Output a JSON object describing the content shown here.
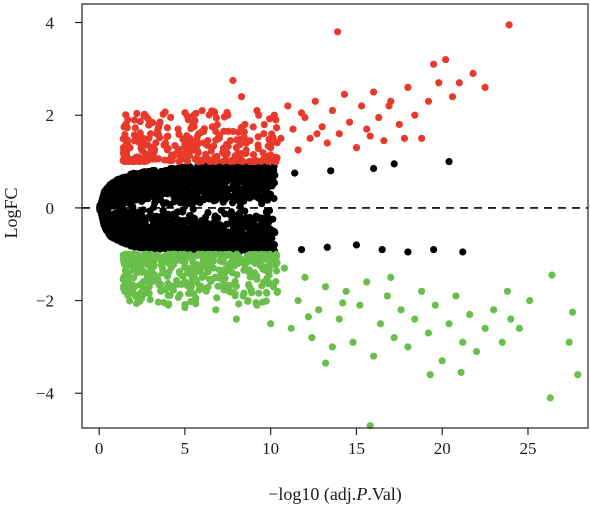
{
  "chart_data": {
    "type": "scatter",
    "title": "",
    "xlabel_prefix": "−log10 (adj.",
    "xlabel_italic": "P",
    "xlabel_suffix": ".Val)",
    "ylabel": "LogFC",
    "xlim": [
      -1.0,
      28.5
    ],
    "ylim": [
      -4.75,
      4.4
    ],
    "x_ticks": [
      0,
      5,
      10,
      15,
      20,
      25
    ],
    "x_tick_labels": [
      "0",
      "5",
      "10",
      "15",
      "20",
      "25"
    ],
    "y_ticks": [
      -4,
      -2,
      0,
      2,
      4
    ],
    "y_tick_labels": [
      "−4",
      "−2",
      "0",
      "2",
      "4"
    ],
    "reference_line": {
      "y": 0,
      "style": "dashed"
    },
    "legend": "none",
    "grid": false,
    "colors": {
      "up": "#e8392b",
      "down": "#6abf4b",
      "not_significant": "#000000"
    },
    "series": [
      {
        "color_key": "up",
        "points": [
          [
            1.5,
            1.15
          ],
          [
            1.8,
            1.3
          ],
          [
            2.2,
            1.1
          ],
          [
            2.5,
            1.45
          ],
          [
            3.0,
            1.6
          ],
          [
            3.2,
            1.2
          ],
          [
            3.5,
            1.8
          ],
          [
            3.8,
            1.35
          ],
          [
            4.0,
            1.55
          ],
          [
            4.3,
            1.1
          ],
          [
            4.6,
            1.7
          ],
          [
            5.0,
            1.4
          ],
          [
            5.2,
            1.9
          ],
          [
            5.5,
            1.25
          ],
          [
            5.8,
            1.6
          ],
          [
            6.0,
            2.1
          ],
          [
            6.3,
            1.35
          ],
          [
            6.6,
            1.75
          ],
          [
            7.0,
            1.5
          ],
          [
            7.2,
            1.2
          ],
          [
            7.5,
            2.0
          ],
          [
            7.8,
            1.65
          ],
          [
            8.0,
            1.3
          ],
          [
            8.3,
            2.4
          ],
          [
            8.5,
            1.8
          ],
          [
            8.8,
            1.45
          ],
          [
            9.0,
            1.15
          ],
          [
            9.3,
            2.0
          ],
          [
            9.6,
            1.6
          ],
          [
            10.0,
            1.3
          ],
          [
            10.3,
            1.9
          ],
          [
            10.6,
            1.5
          ],
          [
            11.0,
            2.2
          ],
          [
            11.3,
            1.7
          ],
          [
            11.6,
            1.25
          ],
          [
            12.0,
            1.95
          ],
          [
            12.3,
            1.5
          ],
          [
            12.6,
            2.3
          ],
          [
            13.0,
            1.75
          ],
          [
            13.3,
            1.4
          ],
          [
            13.6,
            2.1
          ],
          [
            14.0,
            1.6
          ],
          [
            14.3,
            2.45
          ],
          [
            14.6,
            1.85
          ],
          [
            15.0,
            1.3
          ],
          [
            15.3,
            2.2
          ],
          [
            15.6,
            1.7
          ],
          [
            16.0,
            2.5
          ],
          [
            16.3,
            1.95
          ],
          [
            16.6,
            1.45
          ],
          [
            17.0,
            2.3
          ],
          [
            17.5,
            1.8
          ],
          [
            18.0,
            2.6
          ],
          [
            18.4,
            2.0
          ],
          [
            18.8,
            1.5
          ],
          [
            19.2,
            2.3
          ],
          [
            19.5,
            3.1
          ],
          [
            19.8,
            2.7
          ],
          [
            20.2,
            3.2
          ],
          [
            20.6,
            2.4
          ],
          [
            21.0,
            2.7
          ],
          [
            21.8,
            2.9
          ],
          [
            22.5,
            2.6
          ],
          [
            13.9,
            3.8
          ],
          [
            23.9,
            3.95
          ],
          [
            7.8,
            2.75
          ],
          [
            9.2,
            2.1
          ],
          [
            11.8,
            2.05
          ],
          [
            16.9,
            2.2
          ],
          [
            12.7,
            1.6
          ],
          [
            3.3,
            1.4
          ],
          [
            6.8,
            1.65
          ],
          [
            15.8,
            1.55
          ],
          [
            17.8,
            1.5
          ]
        ]
      },
      {
        "color_key": "down",
        "points": [
          [
            1.8,
            -1.05
          ],
          [
            2.0,
            -1.3
          ],
          [
            2.4,
            -1.15
          ],
          [
            2.8,
            -1.5
          ],
          [
            3.2,
            -1.25
          ],
          [
            3.6,
            -1.8
          ],
          [
            4.0,
            -1.4
          ],
          [
            4.4,
            -1.1
          ],
          [
            4.8,
            -1.65
          ],
          [
            5.2,
            -1.3
          ],
          [
            5.6,
            -2.0
          ],
          [
            6.0,
            -1.5
          ],
          [
            6.4,
            -1.2
          ],
          [
            6.8,
            -2.2
          ],
          [
            7.2,
            -1.7
          ],
          [
            7.6,
            -1.35
          ],
          [
            8.0,
            -2.4
          ],
          [
            8.4,
            -1.9
          ],
          [
            8.8,
            -1.4
          ],
          [
            9.2,
            -2.1
          ],
          [
            9.6,
            -1.6
          ],
          [
            10.0,
            -2.5
          ],
          [
            10.4,
            -1.8
          ],
          [
            10.8,
            -1.3
          ],
          [
            11.2,
            -2.6
          ],
          [
            11.6,
            -2.0
          ],
          [
            12.0,
            -1.5
          ],
          [
            12.4,
            -2.8
          ],
          [
            12.8,
            -2.2
          ],
          [
            13.2,
            -1.7
          ],
          [
            13.6,
            -3.0
          ],
          [
            14.0,
            -2.4
          ],
          [
            14.4,
            -1.8
          ],
          [
            14.8,
            -2.9
          ],
          [
            15.2,
            -2.1
          ],
          [
            15.6,
            -1.6
          ],
          [
            16.0,
            -3.2
          ],
          [
            16.4,
            -2.5
          ],
          [
            16.8,
            -1.9
          ],
          [
            17.2,
            -2.8
          ],
          [
            17.6,
            -2.2
          ],
          [
            18.0,
            -3.0
          ],
          [
            18.4,
            -2.4
          ],
          [
            18.8,
            -1.8
          ],
          [
            19.2,
            -2.7
          ],
          [
            19.6,
            -2.1
          ],
          [
            20.0,
            -3.3
          ],
          [
            20.4,
            -2.5
          ],
          [
            20.8,
            -1.9
          ],
          [
            21.2,
            -2.9
          ],
          [
            21.6,
            -2.3
          ],
          [
            22.0,
            -3.1
          ],
          [
            22.5,
            -2.6
          ],
          [
            23.0,
            -2.2
          ],
          [
            23.5,
            -2.9
          ],
          [
            24.0,
            -2.4
          ],
          [
            24.5,
            -2.6
          ],
          [
            26.4,
            -1.45
          ],
          [
            27.4,
            -2.9
          ],
          [
            27.6,
            -2.25
          ],
          [
            27.9,
            -3.6
          ],
          [
            26.3,
            -4.1
          ],
          [
            21.1,
            -3.55
          ],
          [
            15.8,
            -4.7
          ],
          [
            13.2,
            -3.35
          ],
          [
            19.3,
            -3.6
          ],
          [
            23.8,
            -1.8
          ],
          [
            25.1,
            -2.0
          ],
          [
            3.0,
            -1.35
          ],
          [
            6.2,
            -1.75
          ],
          [
            9.4,
            -1.25
          ],
          [
            12.2,
            -2.35
          ],
          [
            17.0,
            -1.5
          ],
          [
            14.2,
            -2.05
          ],
          [
            5.0,
            -2.15
          ]
        ]
      }
    ],
    "background_cloud": {
      "color_key": "not_significant",
      "upper_edge": [
        [
          0.1,
          0.05
        ],
        [
          0.3,
          0.35
        ],
        [
          0.6,
          0.5
        ],
        [
          1.0,
          0.6
        ],
        [
          2.0,
          0.75
        ],
        [
          4.0,
          0.85
        ],
        [
          6.0,
          0.92
        ],
        [
          8.0,
          0.95
        ],
        [
          10.0,
          0.9
        ]
      ],
      "lower_edge": [
        [
          0.1,
          -0.05
        ],
        [
          0.3,
          -0.4
        ],
        [
          0.6,
          -0.6
        ],
        [
          1.0,
          -0.7
        ],
        [
          2.0,
          -0.85
        ],
        [
          4.0,
          -0.92
        ],
        [
          6.0,
          -0.95
        ],
        [
          8.0,
          -0.98
        ],
        [
          10.0,
          -0.95
        ]
      ],
      "outliers": [
        [
          11.4,
          0.75
        ],
        [
          13.5,
          0.8
        ],
        [
          16.0,
          0.85
        ],
        [
          17.2,
          0.95
        ],
        [
          20.4,
          1.0
        ],
        [
          11.8,
          -0.9
        ],
        [
          13.3,
          -0.85
        ],
        [
          15.0,
          -0.8
        ],
        [
          16.5,
          -0.9
        ],
        [
          18.0,
          -0.95
        ],
        [
          19.5,
          -0.9
        ],
        [
          21.2,
          -0.95
        ]
      ]
    }
  }
}
